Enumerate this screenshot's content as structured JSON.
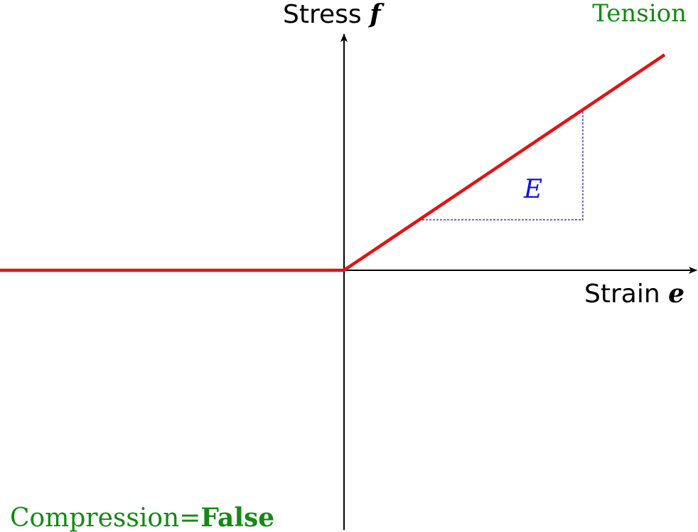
{
  "diagram": {
    "y_axis": {
      "label": "Stress",
      "symbol": "f"
    },
    "x_axis": {
      "label": "Strain",
      "symbol": "e"
    },
    "tension_label": "Tension",
    "slope_label": "E",
    "compression": {
      "label": "Compression=",
      "value": "False"
    }
  },
  "colors": {
    "curve": "#e31313",
    "axes": "#000000",
    "labels_green": "#138a13",
    "slope": "#1010e6"
  }
}
